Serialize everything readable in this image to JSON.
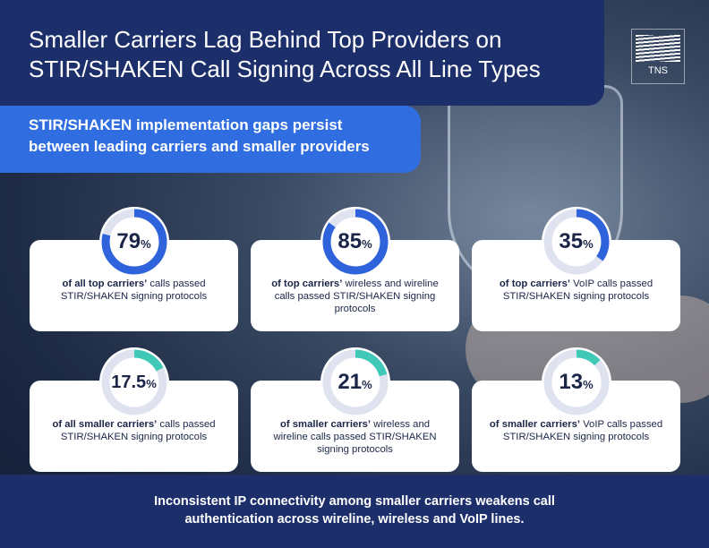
{
  "header": {
    "title": "Smaller Carriers Lag Behind Top Providers on STIR/SHAKEN Call Signing Across All Line Types",
    "subtitle": "STIR/SHAKEN implementation gaps persist between leading carriers and smaller providers",
    "logo": "TNS"
  },
  "stats": [
    {
      "value": 79,
      "unit": "%",
      "lead": "of all top carriers’",
      "text": "calls passed STIR/SHAKEN signing protocols",
      "color": "#2f63dc"
    },
    {
      "value": 85,
      "unit": "%",
      "lead": "of top carriers’",
      "text": "wireless and wireline calls passed STIR/SHAKEN signing protocols",
      "color": "#2f63dc"
    },
    {
      "value": 35,
      "unit": "%",
      "lead": "of top carriers’",
      "text": "VoIP calls passed STIR/SHAKEN signing protocols",
      "color": "#2f63dc"
    },
    {
      "value": 17.5,
      "unit": "%",
      "lead": "of all smaller carriers’",
      "text": "calls passed STIR/SHAKEN signing protocols",
      "color": "#3fc9b6"
    },
    {
      "value": 21,
      "unit": "%",
      "lead": "of smaller carriers’",
      "text": "wireless and wireline calls passed STIR/SHAKEN signing protocols",
      "color": "#3fc9b6"
    },
    {
      "value": 13,
      "unit": "%",
      "lead": "of smaller carriers’",
      "text": "VoIP calls passed STIR/SHAKEN signing protocols",
      "color": "#3fc9b6"
    }
  ],
  "footer": "Inconsistent IP connectivity among smaller carriers weakens call authentication across wireline, wireless and VoIP lines."
}
